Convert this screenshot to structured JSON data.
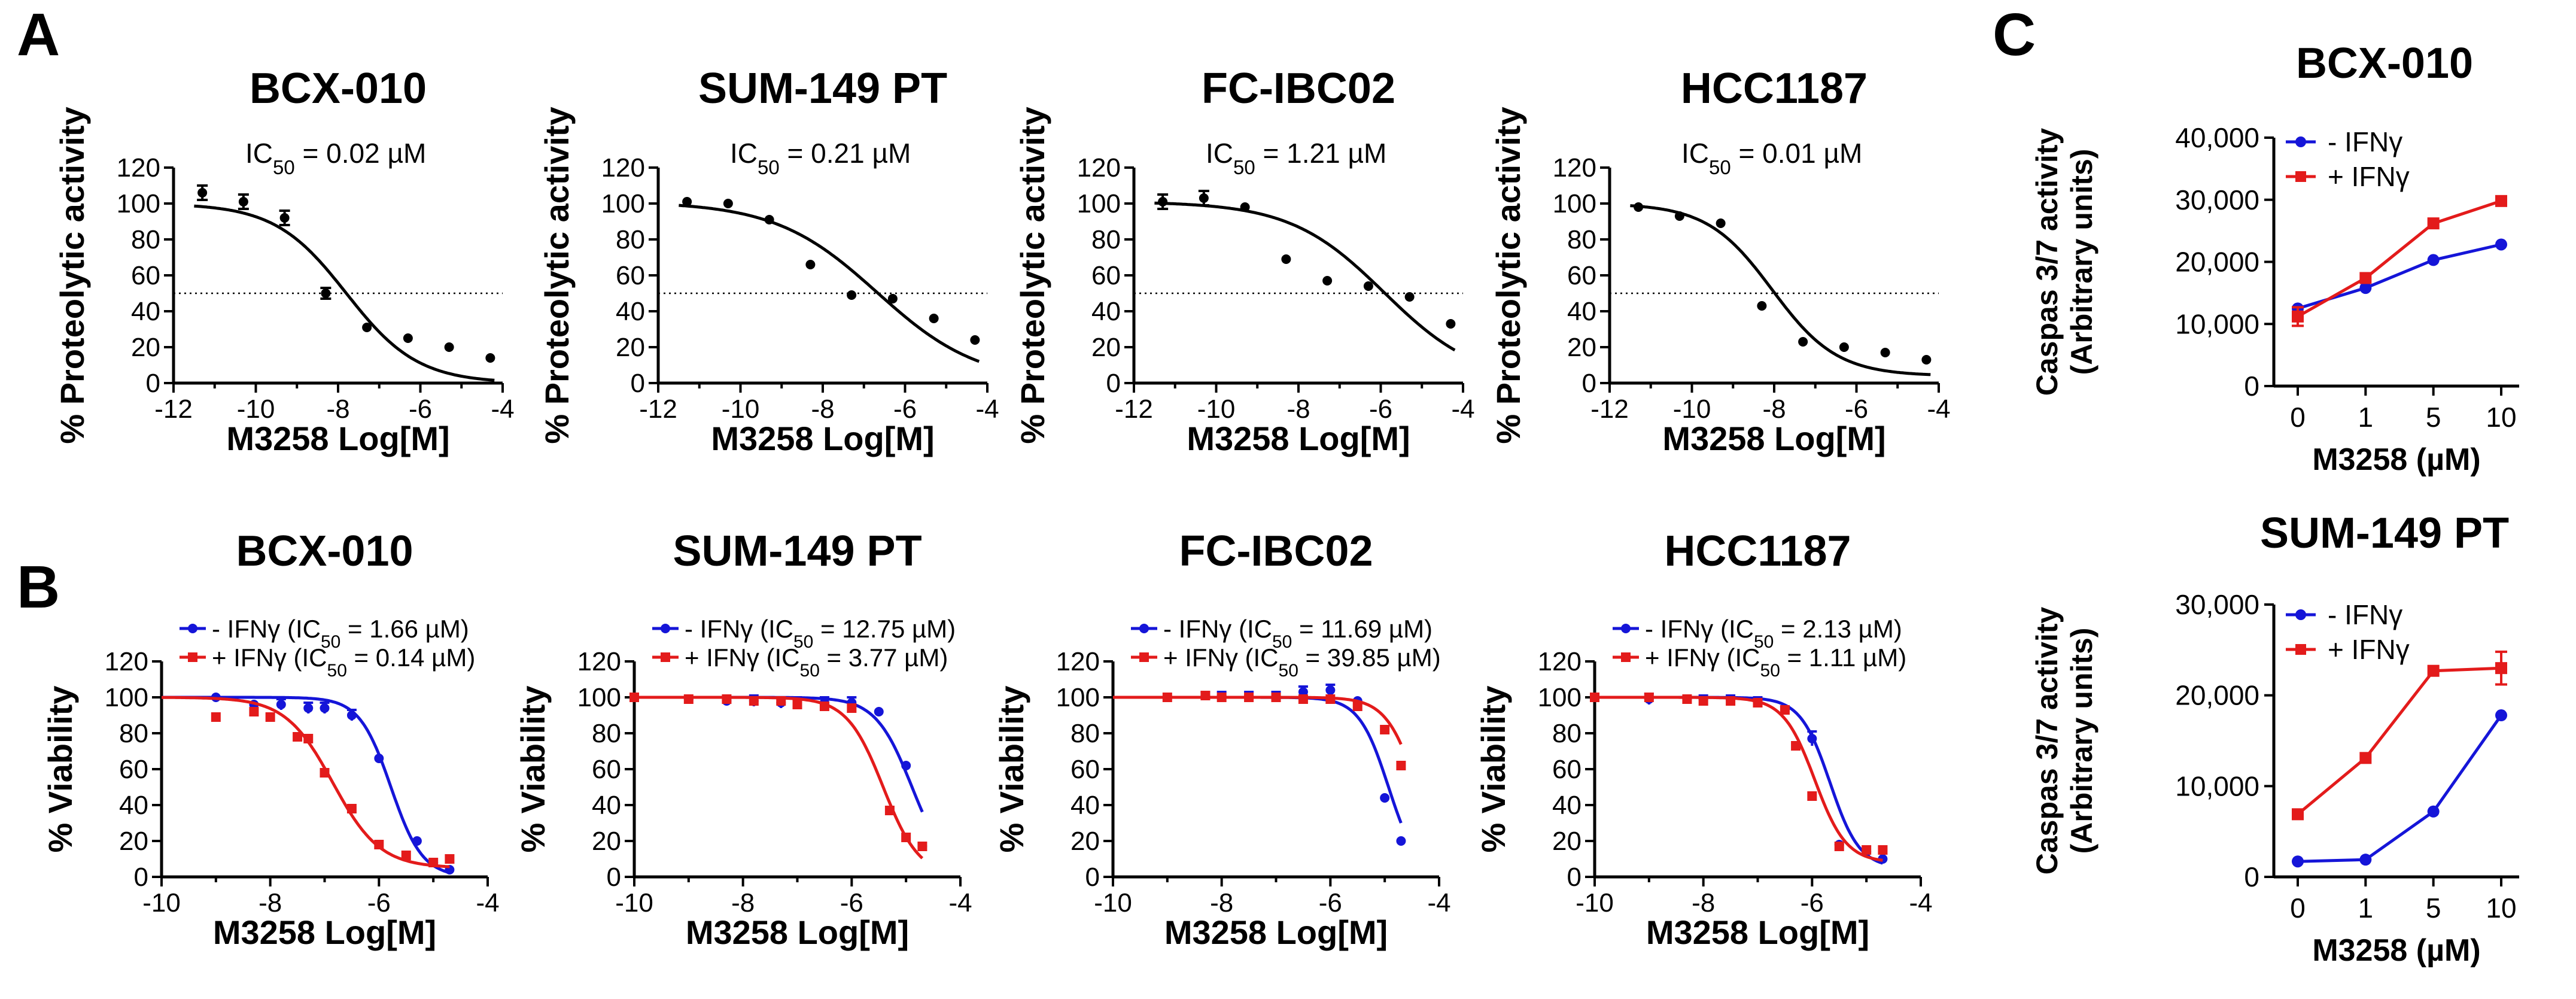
{
  "panels": {
    "A": "A",
    "B": "B",
    "C": "C"
  },
  "chart_data": [
    {
      "id": "A1",
      "type": "scatter",
      "fit": "sigmoid",
      "panel": "A",
      "title": "BCX-010",
      "xlabel": "M3258 Log[M]",
      "ylabel": "% Proteolytic activity",
      "xlim": [
        -12,
        -4
      ],
      "ylim": [
        0,
        120
      ],
      "xticks": [
        "-12",
        "-10",
        "-8",
        "-6",
        "-4"
      ],
      "yticks": [
        "0",
        "20",
        "40",
        "60",
        "80",
        "100",
        "120"
      ],
      "annotation": {
        "prefix": "IC",
        "sub": "50",
        "suffix": " = 0.02 µM"
      },
      "reference_line": 50,
      "fit_params": {
        "top": 100,
        "bottom": 0,
        "logIC50": -7.8,
        "hill": 0.5
      },
      "series": [
        {
          "name": "",
          "color": "#000000",
          "x": [
            -11.3,
            -10.3,
            -9.3,
            -8.3,
            -7.3,
            -6.3,
            -5.3,
            -4.3
          ],
          "y": [
            106,
            101,
            92,
            50,
            31,
            25,
            20,
            14
          ],
          "err": [
            4,
            4,
            4,
            3,
            0,
            0,
            0,
            0
          ]
        }
      ]
    },
    {
      "id": "A2",
      "type": "scatter",
      "fit": "sigmoid",
      "panel": "A",
      "title": "SUM-149 PT",
      "xlabel": "M3258 Log[M]",
      "ylabel": "% Proteolytic activity",
      "xlim": [
        -12,
        -4
      ],
      "ylim": [
        0,
        120
      ],
      "xticks": [
        "-12",
        "-10",
        "-8",
        "-6",
        "-4"
      ],
      "yticks": [
        "0",
        "20",
        "40",
        "60",
        "80",
        "100",
        "120"
      ],
      "annotation": {
        "prefix": "IC",
        "sub": "50",
        "suffix": " = 0.21 µM"
      },
      "reference_line": 50,
      "fit_params": {
        "top": 101,
        "bottom": 0,
        "logIC50": -6.68,
        "hill": 0.35
      },
      "series": [
        {
          "name": "",
          "color": "#000000",
          "x": [
            -11.3,
            -10.3,
            -9.3,
            -8.3,
            -7.3,
            -6.3,
            -5.3,
            -4.3
          ],
          "y": [
            101,
            100,
            91,
            66,
            49,
            47,
            36,
            24
          ],
          "err": [
            0,
            0,
            0,
            0,
            0,
            0,
            0,
            0
          ]
        }
      ]
    },
    {
      "id": "A3",
      "type": "scatter",
      "fit": "sigmoid",
      "panel": "A",
      "title": "FC-IBC02",
      "xlabel": "M3258 Log[M]",
      "ylabel": "% Proteolytic activity",
      "xlim": [
        -12,
        -4
      ],
      "ylim": [
        0,
        120
      ],
      "xticks": [
        "-12",
        "-10",
        "-8",
        "-6",
        "-4"
      ],
      "yticks": [
        "0",
        "20",
        "40",
        "60",
        "80",
        "100",
        "120"
      ],
      "annotation": {
        "prefix": "IC",
        "sub": "50",
        "suffix": " = 1.21 µM"
      },
      "reference_line": 50,
      "fit_params": {
        "top": 101,
        "bottom": 0,
        "logIC50": -5.92,
        "hill": 0.38
      },
      "series": [
        {
          "name": "",
          "color": "#000000",
          "x": [
            -11.3,
            -10.3,
            -9.3,
            -8.3,
            -7.3,
            -6.3,
            -5.3,
            -4.3
          ],
          "y": [
            101,
            103,
            98,
            69,
            57,
            54,
            48,
            33
          ],
          "err": [
            4,
            4,
            0,
            0,
            0,
            0,
            0,
            0
          ]
        }
      ]
    },
    {
      "id": "A4",
      "type": "scatter",
      "fit": "sigmoid",
      "panel": "A",
      "title": "HCC1187",
      "xlabel": "M3258 Log[M]",
      "ylabel": "% Proteolytic activity",
      "xlim": [
        -12,
        -4
      ],
      "ylim": [
        0,
        120
      ],
      "xticks": [
        "-12",
        "-10",
        "-8",
        "-6",
        "-4"
      ],
      "yticks": [
        "0",
        "20",
        "40",
        "60",
        "80",
        "100",
        "120"
      ],
      "annotation": {
        "prefix": "IC",
        "sub": "50",
        "suffix": " = 0.01 µM"
      },
      "reference_line": 50,
      "fit_params": {
        "top": 100,
        "bottom": 4,
        "logIC50": -8.05,
        "hill": 0.55
      },
      "series": [
        {
          "name": "",
          "color": "#000000",
          "x": [
            -11.3,
            -10.3,
            -9.3,
            -8.3,
            -7.3,
            -6.3,
            -5.3,
            -4.3
          ],
          "y": [
            98,
            93,
            89,
            43,
            23,
            20,
            17,
            13
          ],
          "err": [
            0,
            0,
            0,
            0,
            0,
            0,
            0,
            0
          ]
        }
      ]
    },
    {
      "id": "B1",
      "type": "scatter",
      "fit": "sigmoid",
      "panel": "B",
      "title": "BCX-010",
      "xlabel": "M3258 Log[M]",
      "ylabel": "% Viability",
      "xlim": [
        -10,
        -4
      ],
      "ylim": [
        0,
        120
      ],
      "xticks": [
        "-10",
        "-8",
        "-6",
        "-4"
      ],
      "yticks": [
        "0",
        "20",
        "40",
        "60",
        "80",
        "100",
        "120"
      ],
      "series": [
        {
          "name": "- IFNγ (IC50 = 1.66 µM)",
          "label": {
            "pre": "- IFNγ (IC",
            "sub": "50",
            "post": " = 1.66 µM)"
          },
          "color": "#1515d8",
          "marker": "circle",
          "fit_params": {
            "top": 100,
            "bottom": 0,
            "logIC50": -5.78,
            "hill": 1.5
          },
          "x": [
            -9.0,
            -8.3,
            -7.8,
            -7.3,
            -7.0,
            -6.5,
            -6.0,
            -5.3,
            -5.0,
            -4.7
          ],
          "y": [
            100,
            96,
            96,
            94,
            94,
            90,
            66,
            20,
            8,
            4
          ],
          "err": [
            0,
            0,
            3,
            3,
            3,
            3,
            0,
            0,
            0,
            0
          ]
        },
        {
          "name": "+ IFNγ (IC50 = 0.14 µM)",
          "label": {
            "pre": "+ IFNγ (IC",
            "sub": "50",
            "post": " = 0.14 µM)"
          },
          "color": "#e31b1b",
          "marker": "square",
          "fit_params": {
            "top": 100,
            "bottom": 5,
            "logIC50": -6.85,
            "hill": 1.0
          },
          "x": [
            -9.0,
            -8.3,
            -8.0,
            -7.5,
            -7.3,
            -7.0,
            -6.5,
            -6.0,
            -5.5,
            -5.0,
            -4.7
          ],
          "y": [
            89,
            92,
            89,
            78,
            77,
            58,
            38,
            18,
            12,
            8,
            10
          ],
          "err": [
            0,
            0,
            0,
            0,
            0,
            0,
            0,
            0,
            0,
            0,
            0
          ]
        }
      ]
    },
    {
      "id": "B2",
      "type": "scatter",
      "fit": "sigmoid",
      "panel": "B",
      "title": "SUM-149 PT",
      "xlabel": "M3258 Log[M]",
      "ylabel": "% Viability",
      "xlim": [
        -10,
        -4
      ],
      "ylim": [
        0,
        120
      ],
      "xticks": [
        "-10",
        "-8",
        "-6",
        "-4"
      ],
      "yticks": [
        "0",
        "20",
        "40",
        "60",
        "80",
        "100",
        "120"
      ],
      "series": [
        {
          "name": "- IFNγ (IC50 = 12.75 µM)",
          "label": {
            "pre": "- IFNγ (IC",
            "sub": "50",
            "post": " = 12.75 µM)"
          },
          "color": "#1515d8",
          "marker": "circle",
          "fit_params": {
            "top": 100,
            "bottom": 0,
            "logIC50": -4.89,
            "hill": 1.3
          },
          "x": [
            -10.0,
            -9.0,
            -8.3,
            -7.8,
            -7.3,
            -7.0,
            -6.5,
            -6.0,
            -5.5,
            -5.0,
            -4.7
          ],
          "y": [
            100,
            99,
            98,
            98,
            97,
            97,
            97,
            97,
            92,
            62,
            17
          ],
          "err": [
            0,
            0,
            0,
            3,
            3,
            3,
            3,
            3,
            0,
            0,
            0
          ]
        },
        {
          "name": "+ IFNγ (IC50 = 3.77 µM)",
          "label": {
            "pre": "+ IFNγ (IC",
            "sub": "50",
            "post": " = 3.77 µM)"
          },
          "color": "#e31b1b",
          "marker": "square",
          "fit_params": {
            "top": 100,
            "bottom": 0,
            "logIC50": -5.42,
            "hill": 1.3
          },
          "x": [
            -10.0,
            -9.0,
            -8.3,
            -7.8,
            -7.3,
            -7.0,
            -6.5,
            -6.0,
            -5.3,
            -5.0,
            -4.7
          ],
          "y": [
            100,
            99,
            99,
            98,
            98,
            96,
            95,
            94,
            37,
            22,
            17
          ],
          "err": [
            0,
            0,
            0,
            0,
            0,
            0,
            0,
            0,
            0,
            0,
            0
          ]
        }
      ]
    },
    {
      "id": "B3",
      "type": "scatter",
      "fit": "sigmoid",
      "panel": "B",
      "title": "FC-IBC02",
      "xlabel": "M3258 Log[M]",
      "ylabel": "% Viability",
      "xlim": [
        -10,
        -4
      ],
      "ylim": [
        0,
        120
      ],
      "xticks": [
        "-10",
        "-8",
        "-6",
        "-4"
      ],
      "yticks": [
        "0",
        "20",
        "40",
        "60",
        "80",
        "100",
        "120"
      ],
      "series": [
        {
          "name": "- IFNγ (IC50 = 11.69 µM)",
          "label": {
            "pre": "- IFNγ (IC",
            "sub": "50",
            "post": " = 11.69 µM)"
          },
          "color": "#1515d8",
          "marker": "circle",
          "fit_params": {
            "top": 100,
            "bottom": 0,
            "logIC50": -4.93,
            "hill": 1.6
          },
          "x": [
            -9.0,
            -8.3,
            -8.0,
            -7.5,
            -7.0,
            -6.5,
            -6.0,
            -5.5,
            -5.0,
            -4.7
          ],
          "y": [
            100,
            101,
            101,
            101,
            101,
            103,
            104,
            98,
            44,
            20
          ],
          "err": [
            0,
            2,
            2,
            2,
            2,
            3,
            3,
            0,
            0,
            0
          ]
        },
        {
          "name": "+ IFNγ (IC50 = 39.85 µM)",
          "label": {
            "pre": "+ IFNγ (IC",
            "sub": "50",
            "post": " = 39.85 µM)"
          },
          "color": "#e31b1b",
          "marker": "square",
          "fit_params": {
            "top": 100,
            "bottom": 0,
            "logIC50": -4.4,
            "hill": 1.5
          },
          "x": [
            -9.0,
            -8.3,
            -8.0,
            -7.5,
            -7.0,
            -6.5,
            -6.0,
            -5.5,
            -5.0,
            -4.7
          ],
          "y": [
            100,
            101,
            100,
            100,
            100,
            99,
            99,
            95,
            82,
            62
          ],
          "err": [
            0,
            0,
            0,
            0,
            0,
            0,
            0,
            0,
            0,
            0
          ]
        }
      ]
    },
    {
      "id": "B4",
      "type": "scatter",
      "fit": "sigmoid",
      "panel": "B",
      "title": "HCC1187",
      "xlabel": "M3258 Log[M]",
      "ylabel": "% Viability",
      "xlim": [
        -10,
        -4
      ],
      "ylim": [
        0,
        120
      ],
      "xticks": [
        "-10",
        "-8",
        "-6",
        "-4"
      ],
      "yticks": [
        "0",
        "20",
        "40",
        "60",
        "80",
        "100",
        "120"
      ],
      "series": [
        {
          "name": "- IFNγ (IC50 = 2.13 µM)",
          "label": {
            "pre": "- IFNγ (IC",
            "sub": "50",
            "post": " = 2.13 µM)"
          },
          "color": "#1515d8",
          "marker": "circle",
          "fit_params": {
            "top": 100,
            "bottom": 5,
            "logIC50": -5.67,
            "hill": 1.6
          },
          "x": [
            -10.0,
            -9.0,
            -8.3,
            -8.0,
            -7.5,
            -7.0,
            -6.5,
            -6.0,
            -5.5,
            -5.0,
            -4.7
          ],
          "y": [
            100,
            99,
            99,
            99,
            99,
            98,
            93,
            77,
            18,
            14,
            10
          ],
          "err": [
            0,
            3,
            0,
            2,
            2,
            2,
            2,
            4,
            0,
            0,
            0
          ]
        },
        {
          "name": "+ IFNγ (IC50 = 1.11 µM)",
          "label": {
            "pre": "+ IFNγ (IC",
            "sub": "50",
            "post": " = 1.11 µM)"
          },
          "color": "#e31b1b",
          "marker": "square",
          "fit_params": {
            "top": 100,
            "bottom": 8,
            "logIC50": -5.95,
            "hill": 1.5
          },
          "x": [
            -10.0,
            -9.0,
            -8.3,
            -8.0,
            -7.5,
            -7.0,
            -6.5,
            -6.3,
            -6.0,
            -5.5,
            -5.0,
            -4.7
          ],
          "y": [
            100,
            100,
            99,
            98,
            98,
            97,
            93,
            73,
            45,
            17,
            15,
            15
          ],
          "err": [
            0,
            0,
            0,
            0,
            0,
            0,
            0,
            0,
            0,
            0,
            0,
            0
          ]
        }
      ]
    },
    {
      "id": "C1",
      "type": "line",
      "panel": "C",
      "title": "BCX-010",
      "xlabel": "M3258 (µM)",
      "ylabel_lines": [
        "Caspas 3/7 activity",
        "(Arbitrary units)"
      ],
      "categories": [
        "0",
        "1",
        "5",
        "10"
      ],
      "ylim": [
        0,
        40000
      ],
      "yticks": [
        0,
        10000,
        20000,
        30000,
        40000
      ],
      "ytick_labels": [
        "0",
        "10,000",
        "20,000",
        "30,000",
        "40,000"
      ],
      "series": [
        {
          "name": "- IFNγ",
          "label": {
            "pre": "- IFNγ",
            "sub": "",
            "post": ""
          },
          "color": "#1515d8",
          "marker": "circle",
          "values": [
            12500,
            15800,
            20300,
            22800
          ],
          "err": [
            0,
            0,
            0,
            0
          ]
        },
        {
          "name": "+ IFNγ",
          "label": {
            "pre": "+ IFNγ",
            "sub": "",
            "post": ""
          },
          "color": "#e31b1b",
          "marker": "square",
          "values": [
            11200,
            17400,
            26200,
            29800
          ],
          "err": [
            1500,
            0,
            0,
            0
          ]
        }
      ]
    },
    {
      "id": "C2",
      "type": "line",
      "panel": "C",
      "title": "SUM-149 PT",
      "xlabel": "M3258 (µM)",
      "ylabel_lines": [
        "Caspas 3/7 activity",
        "(Arbitrary units)"
      ],
      "categories": [
        "0",
        "1",
        "5",
        "10"
      ],
      "ylim": [
        0,
        30000
      ],
      "yticks": [
        0,
        10000,
        20000,
        30000
      ],
      "ytick_labels": [
        "0",
        "10,000",
        "20,000",
        "30,000"
      ],
      "series": [
        {
          "name": "- IFNγ",
          "label": {
            "pre": "- IFNγ",
            "sub": "",
            "post": ""
          },
          "color": "#1515d8",
          "marker": "circle",
          "values": [
            1700,
            1900,
            7200,
            17800
          ],
          "err": [
            0,
            0,
            0,
            0
          ]
        },
        {
          "name": "+ IFNγ",
          "label": {
            "pre": "+ IFNγ",
            "sub": "",
            "post": ""
          },
          "color": "#e31b1b",
          "marker": "square",
          "values": [
            6900,
            13100,
            22700,
            23000
          ],
          "err": [
            0,
            0,
            0,
            1800
          ]
        }
      ]
    }
  ]
}
